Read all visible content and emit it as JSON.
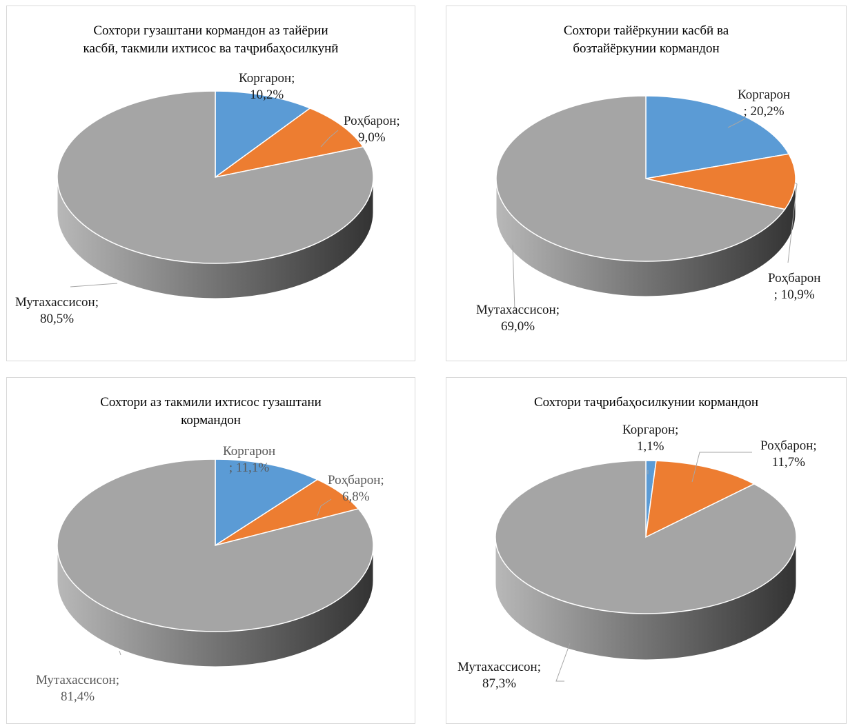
{
  "chart_data": [
    {
      "type": "pie",
      "variant": "3d",
      "title_lines": [
        "Сохтори гузаштани кормандон аз тайёрии",
        "касбӣ, такмили ихтисос ва таҷрибаҳосилкунӣ"
      ],
      "slices": [
        {
          "name": "Коргарон",
          "value": 10.2,
          "color": "#5b9bd5",
          "label_lines": [
            "Коргарон;",
            "10,2%"
          ]
        },
        {
          "name": "Роҳбарон",
          "value": 9.0,
          "color": "#ed7d31",
          "label_lines": [
            "Роҳбарон;",
            "9,0%"
          ]
        },
        {
          "name": "Мутахассисон",
          "value": 80.5,
          "color": "#a5a5a5",
          "label_lines": [
            "Мутахассисон;",
            "80,5%"
          ]
        }
      ]
    },
    {
      "type": "pie",
      "variant": "3d",
      "title_lines": [
        "Сохтори тайёркунии касбӣ ва",
        "бозтайёркунии кормандон"
      ],
      "slices": [
        {
          "name": "Коргарон",
          "value": 20.2,
          "color": "#5b9bd5",
          "label_lines": [
            "Коргарон",
            "; 20,2%"
          ]
        },
        {
          "name": "Роҳбарон",
          "value": 10.9,
          "color": "#ed7d31",
          "label_lines": [
            "Роҳбарон",
            "; 10,9%"
          ]
        },
        {
          "name": "Мутахассисон",
          "value": 69.0,
          "color": "#a5a5a5",
          "label_lines": [
            "Мутахассисон;",
            "69,0%"
          ]
        }
      ]
    },
    {
      "type": "pie",
      "variant": "3d",
      "title_lines": [
        "Сохтори аз такмили ихтисос гузаштани",
        "кормандон"
      ],
      "slices": [
        {
          "name": "Коргарон",
          "value": 11.1,
          "color": "#5b9bd5",
          "label_lines": [
            "Коргарон",
            "; 11,1%"
          ]
        },
        {
          "name": "Роҳбарон",
          "value": 6.8,
          "color": "#ed7d31",
          "label_lines": [
            "Роҳбарон;",
            "6,8%"
          ]
        },
        {
          "name": "Мутахассисон",
          "value": 81.4,
          "color": "#a5a5a5",
          "label_lines": [
            "Мутахассисон;",
            "81,4%"
          ]
        }
      ]
    },
    {
      "type": "pie",
      "variant": "3d",
      "title_lines": [
        "Сохтори таҷрибаҳосилкунии кормандон"
      ],
      "slices": [
        {
          "name": "Коргарон",
          "value": 1.1,
          "color": "#5b9bd5",
          "label_lines": [
            "Коргарон;",
            "1,1%"
          ]
        },
        {
          "name": "Роҳбарон",
          "value": 11.7,
          "color": "#ed7d31",
          "label_lines": [
            "Роҳбарон;",
            "11,7%"
          ]
        },
        {
          "name": "Мутахассисон",
          "value": 87.3,
          "color": "#a5a5a5",
          "label_lines": [
            "Мутахассисон;",
            "87,3%"
          ]
        }
      ]
    }
  ]
}
